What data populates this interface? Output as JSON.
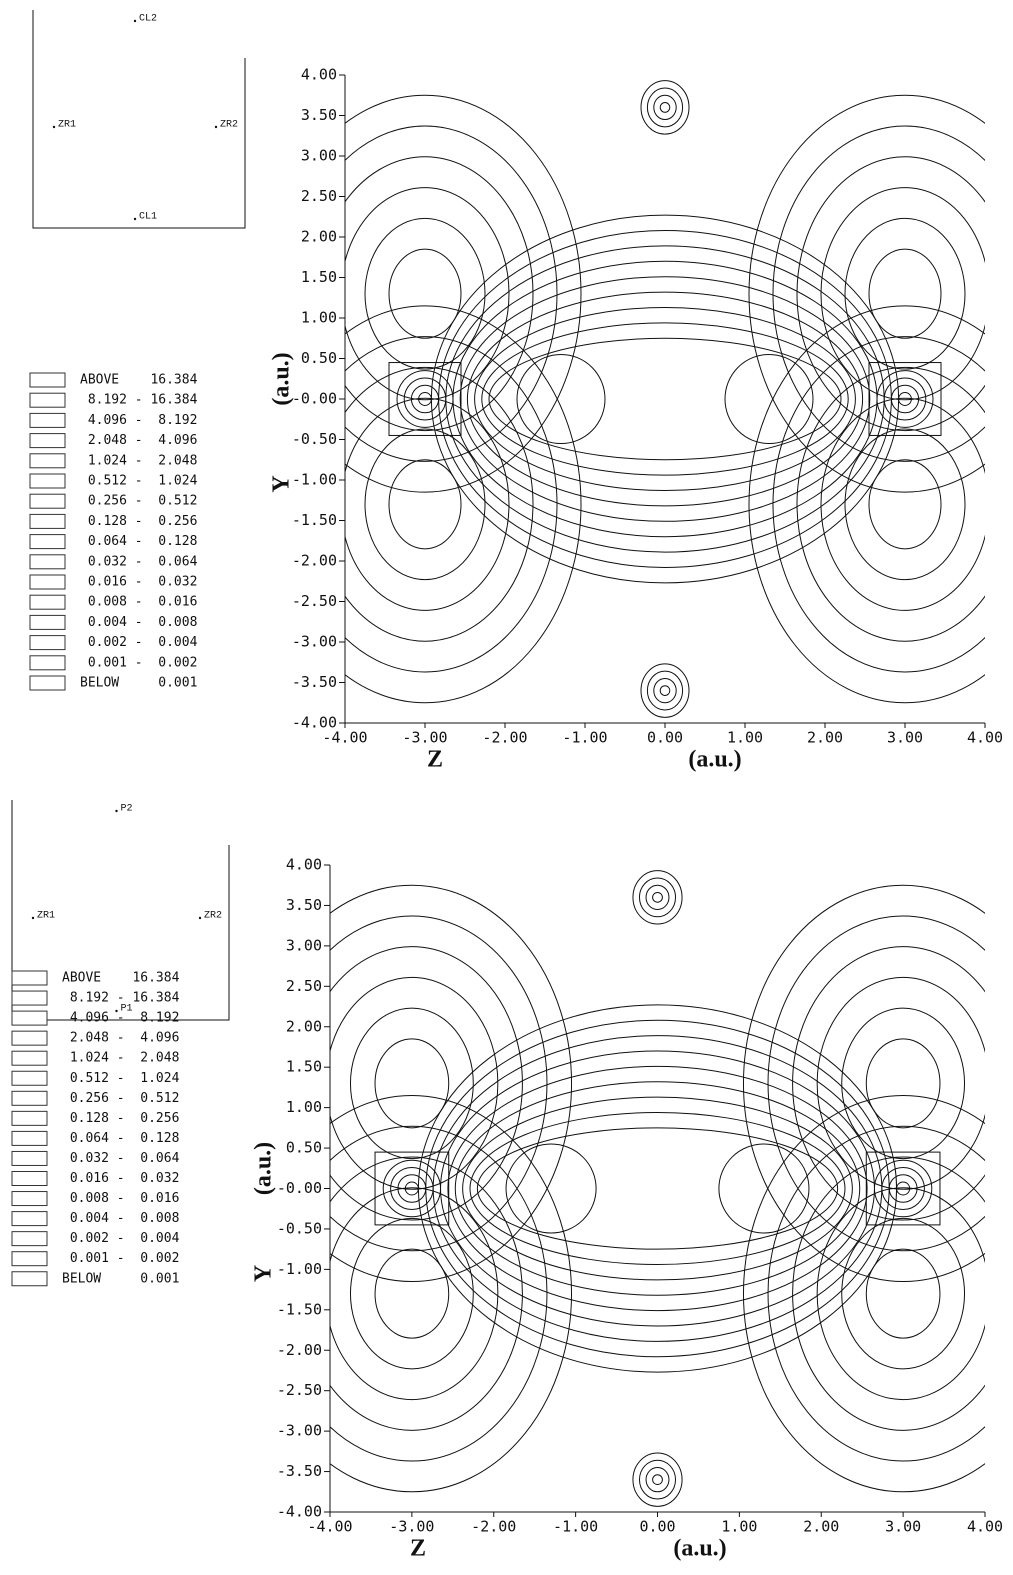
{
  "chart_data": [
    {
      "type": "contour",
      "xlabel": "Z",
      "ylabel": "Y",
      "unit": "(a.u.)",
      "xlim": [
        -4,
        4
      ],
      "ylim": [
        -4,
        4
      ],
      "xticks": [
        {
          "value": -4,
          "label": "-4.00"
        },
        {
          "value": -3,
          "label": "-3.00"
        },
        {
          "value": -2,
          "label": "-2.00"
        },
        {
          "value": -1,
          "label": "-1.00"
        },
        {
          "value": 0,
          "label": "0.00"
        },
        {
          "value": 1,
          "label": "1.00"
        },
        {
          "value": 2,
          "label": "2.00"
        },
        {
          "value": 3,
          "label": "3.00"
        },
        {
          "value": 4,
          "label": "4.00"
        }
      ],
      "yticks": [
        {
          "value": 4,
          "label": "4.00"
        },
        {
          "value": 3.5,
          "label": "3.50"
        },
        {
          "value": 3,
          "label": "3.00"
        },
        {
          "value": 2.5,
          "label": "2.50"
        },
        {
          "value": 2,
          "label": "2.00"
        },
        {
          "value": 1.5,
          "label": "1.50"
        },
        {
          "value": 1,
          "label": "1.00"
        },
        {
          "value": 0.5,
          "label": "0.50"
        },
        {
          "value": 0,
          "label": "-0.00"
        },
        {
          "value": -0.5,
          "label": "-0.50"
        },
        {
          "value": -1,
          "label": "-1.00"
        },
        {
          "value": -1.5,
          "label": "-1.50"
        },
        {
          "value": -2,
          "label": "-2.00"
        },
        {
          "value": -2.5,
          "label": "-2.50"
        },
        {
          "value": -3,
          "label": "-3.00"
        },
        {
          "value": -3.5,
          "label": "-3.50"
        },
        {
          "value": -4,
          "label": "-4.00"
        }
      ],
      "atoms": {
        "top": "CL2",
        "left": "ZR1",
        "right": "ZR2",
        "bottom": "CL1"
      },
      "legend": [
        "ABOVE    16.384",
        " 8.192 - 16.384",
        " 4.096 -  8.192",
        " 2.048 -  4.096",
        " 1.024 -  2.048",
        " 0.512 -  1.024",
        " 0.256 -  0.512",
        " 0.128 -  0.256",
        " 0.064 -  0.128",
        " 0.032 -  0.064",
        " 0.016 -  0.032",
        " 0.008 -  0.016",
        " 0.004 -  0.008",
        " 0.002 -  0.004",
        " 0.001 -  0.002",
        "BELOW     0.001"
      ]
    },
    {
      "type": "contour",
      "xlabel": "Z",
      "ylabel": "Y",
      "unit": "(a.u.)",
      "xlim": [
        -4,
        4
      ],
      "ylim": [
        -4,
        4
      ],
      "xticks": [
        {
          "value": -4,
          "label": "-4.00"
        },
        {
          "value": -3,
          "label": "-3.00"
        },
        {
          "value": -2,
          "label": "-2.00"
        },
        {
          "value": -1,
          "label": "-1.00"
        },
        {
          "value": 0,
          "label": "0.00"
        },
        {
          "value": 1,
          "label": "1.00"
        },
        {
          "value": 2,
          "label": "2.00"
        },
        {
          "value": 3,
          "label": "3.00"
        },
        {
          "value": 4,
          "label": "4.00"
        }
      ],
      "yticks": [
        {
          "value": 4,
          "label": "4.00"
        },
        {
          "value": 3.5,
          "label": "3.50"
        },
        {
          "value": 3,
          "label": "3.00"
        },
        {
          "value": 2.5,
          "label": "2.50"
        },
        {
          "value": 2,
          "label": "2.00"
        },
        {
          "value": 1.5,
          "label": "1.50"
        },
        {
          "value": 1,
          "label": "1.00"
        },
        {
          "value": 0.5,
          "label": "0.50"
        },
        {
          "value": 0,
          "label": "-0.00"
        },
        {
          "value": -0.5,
          "label": "-0.50"
        },
        {
          "value": -1,
          "label": "-1.00"
        },
        {
          "value": -1.5,
          "label": "-1.50"
        },
        {
          "value": -2,
          "label": "-2.00"
        },
        {
          "value": -2.5,
          "label": "-2.50"
        },
        {
          "value": -3,
          "label": "-3.00"
        },
        {
          "value": -3.5,
          "label": "-3.50"
        },
        {
          "value": -4,
          "label": "-4.00"
        }
      ],
      "atoms": {
        "top": "P2",
        "left": "ZR1",
        "right": "ZR2",
        "bottom": "P1"
      },
      "legend": [
        "ABOVE    16.384",
        " 8.192 - 16.384",
        " 4.096 -  8.192",
        " 2.048 -  4.096",
        " 1.024 -  2.048",
        " 0.512 -  1.024",
        " 0.256 -  0.512",
        " 0.128 -  0.256",
        " 0.064 -  0.128",
        " 0.032 -  0.064",
        " 0.016 -  0.032",
        " 0.008 -  0.016",
        " 0.004 -  0.008",
        " 0.002 -  0.004",
        " 0.001 -  0.002",
        "BELOW     0.001"
      ]
    }
  ]
}
